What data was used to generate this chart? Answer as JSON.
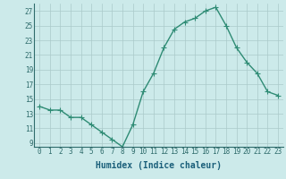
{
  "x": [
    0,
    1,
    2,
    3,
    4,
    5,
    6,
    7,
    8,
    9,
    10,
    11,
    12,
    13,
    14,
    15,
    16,
    17,
    18,
    19,
    20,
    21,
    22,
    23
  ],
  "y": [
    14,
    13.5,
    13.5,
    12.5,
    12.5,
    11.5,
    10.5,
    9.5,
    8.5,
    11.5,
    16,
    18.5,
    22,
    24.5,
    25.5,
    26,
    27,
    27.5,
    25,
    22,
    20,
    18.5,
    16,
    15.5
  ],
  "line_color": "#2e8b74",
  "marker": "+",
  "marker_size": 4,
  "bg_color": "#cceaea",
  "grid_color": "#aacaca",
  "xlabel": "Humidex (Indice chaleur)",
  "xlim": [
    -0.5,
    23.5
  ],
  "ylim": [
    8.5,
    28
  ],
  "yticks": [
    9,
    11,
    13,
    15,
    17,
    19,
    21,
    23,
    25,
    27
  ],
  "xticks": [
    0,
    1,
    2,
    3,
    4,
    5,
    6,
    7,
    8,
    9,
    10,
    11,
    12,
    13,
    14,
    15,
    16,
    17,
    18,
    19,
    20,
    21,
    22,
    23
  ],
  "tick_label_fontsize": 5.5,
  "xlabel_fontsize": 7,
  "line_width": 1.0,
  "marker_linewidth": 0.8,
  "spine_color": "#2e6b6b",
  "tick_color": "#2e6b6b",
  "xlabel_color": "#1a5f7a"
}
